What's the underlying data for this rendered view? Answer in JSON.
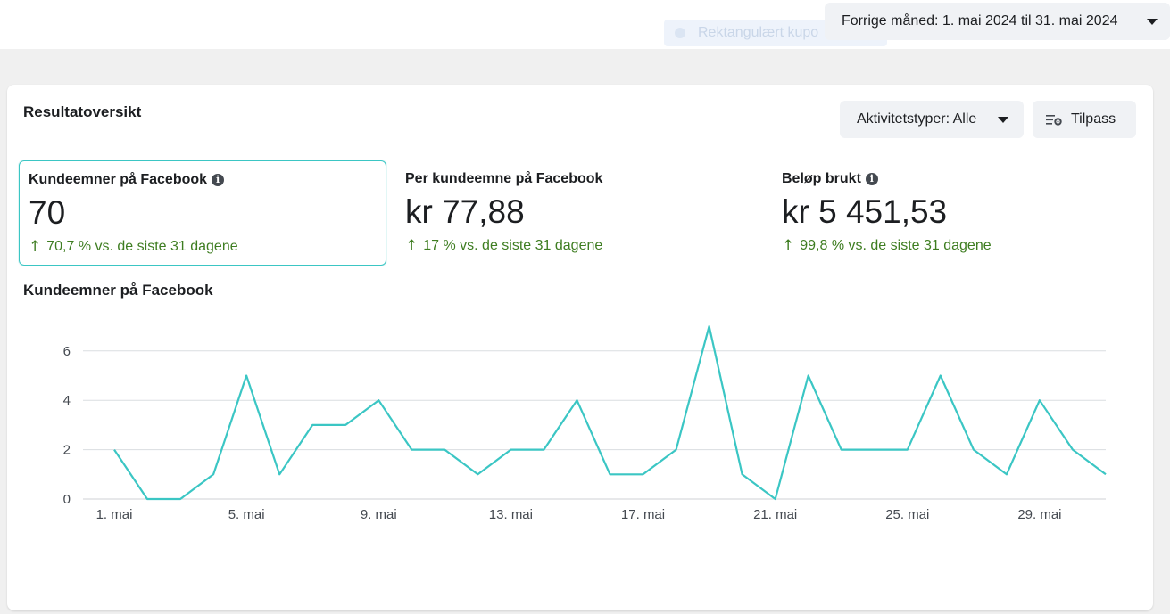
{
  "topbar": {
    "ghost_label": "Rektangulært kupo",
    "date_range_label": "Forrige måned: 1. mai 2024 til 31. mai 2024"
  },
  "card": {
    "title": "Resultatoversikt",
    "activity_button_label": "Aktivitetstyper: Alle",
    "customize_button_label": "Tilpass"
  },
  "metrics": [
    {
      "label": "Kundeemner på Facebook",
      "value": "70",
      "delta": "70,7 % vs. de siste 31 dagene",
      "has_info": true,
      "selected": true
    },
    {
      "label": "Per kundeemne på Facebook",
      "value": "kr 77,88",
      "delta": "17 % vs. de siste 31 dagene",
      "has_info": false,
      "selected": false
    },
    {
      "label": "Beløp brukt",
      "value": "kr 5 451,53",
      "delta": "99,8 % vs. de siste 31 dagene",
      "has_info": true,
      "selected": false
    }
  ],
  "colors": {
    "accent": "#3bc6c4",
    "positive": "#3e7d21"
  },
  "chart_data": {
    "type": "line",
    "title": "Kundeemner på Facebook",
    "x_tick_labels": [
      "1. mai",
      "5. mai",
      "9. mai",
      "13. mai",
      "17. mai",
      "21. mai",
      "25. mai",
      "29. mai"
    ],
    "x": [
      1,
      2,
      3,
      4,
      5,
      6,
      7,
      8,
      9,
      10,
      11,
      12,
      13,
      14,
      15,
      16,
      17,
      18,
      19,
      20,
      21,
      22,
      23,
      24,
      25,
      26,
      27,
      28,
      29,
      30,
      31
    ],
    "values": [
      2,
      0,
      0,
      1,
      5,
      1,
      3,
      3,
      4,
      2,
      2,
      1,
      2,
      2,
      4,
      1,
      1,
      2,
      7,
      1,
      0,
      5,
      2,
      2,
      2,
      5,
      2,
      1,
      4,
      2,
      1
    ],
    "y_ticks": [
      0,
      2,
      4,
      6
    ],
    "ylim": [
      0,
      7
    ],
    "grid": true,
    "line_color": "#3bc6c4"
  }
}
